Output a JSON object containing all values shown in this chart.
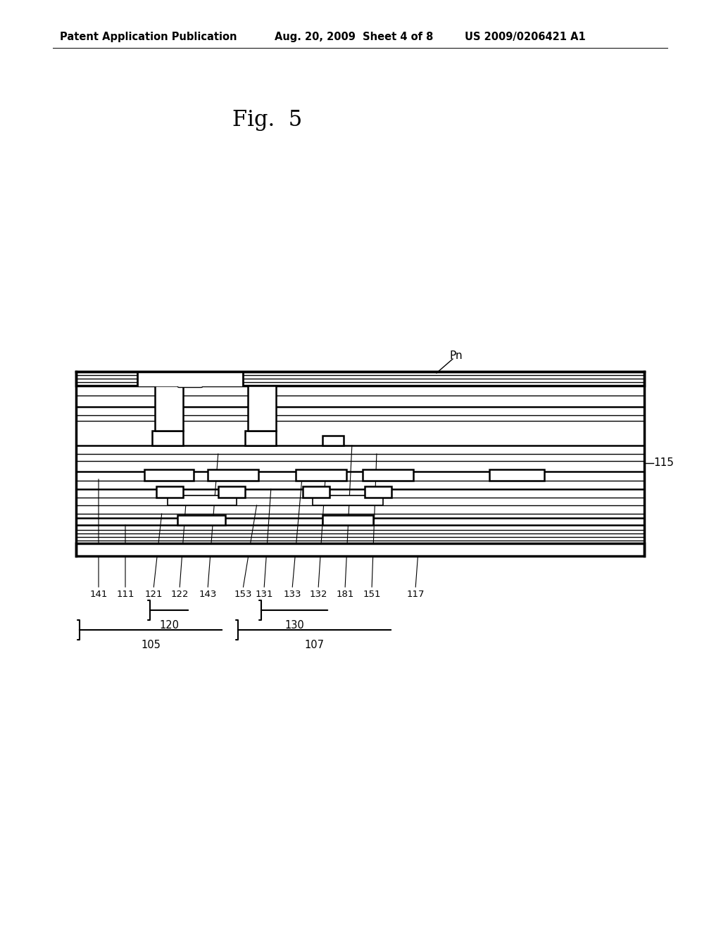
{
  "title": "Fig.  5",
  "header_left": "Patent Application Publication",
  "header_mid": "Aug. 20, 2009  Sheet 4 of 8",
  "header_right": "US 2009/0206421 A1",
  "bg_color": "#ffffff",
  "line_color": "#000000",
  "fig_title_fontsize": 22,
  "header_fontsize": 11
}
